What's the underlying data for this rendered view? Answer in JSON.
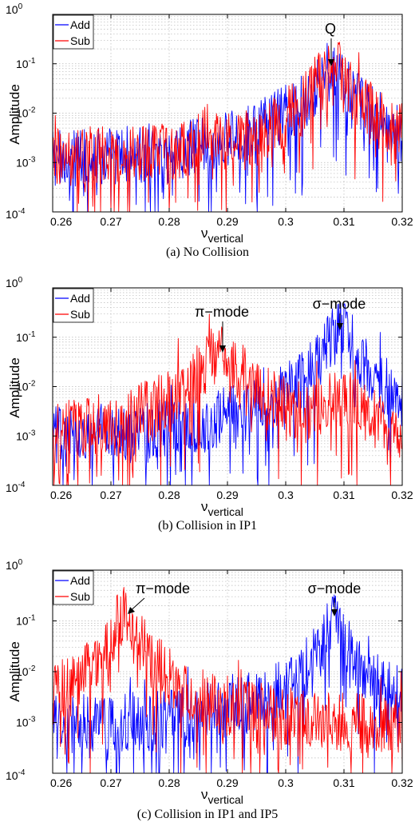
{
  "chart_data": [
    {
      "type": "line",
      "caption": "(a) No Collision",
      "xlabel": "ν",
      "xlabel_sub": "vertical",
      "ylabel": "Amplitude",
      "xlim": [
        0.26,
        0.32
      ],
      "ylim": [
        0.0001,
        1
      ],
      "yscale": "log",
      "grid": true,
      "x_ticks": [
        "0.26",
        "0.27",
        "0.28",
        "0.29",
        "0.3",
        "0.31",
        "0.32"
      ],
      "y_tick_exponents": [
        "-4",
        "-3",
        "-2",
        "-1",
        "0"
      ],
      "y_tick_base": "10",
      "legend": {
        "position": "top-left",
        "entries": [
          "Add",
          "Sub"
        ]
      },
      "annotations": [
        {
          "text": "Q",
          "x": 0.308,
          "y": 0.1
        }
      ],
      "series": [
        {
          "name": "Add",
          "color": "#0000ff",
          "profile": {
            "base": 0.0012,
            "peaks": [
              {
                "x": 0.308,
                "amp": 0.09,
                "width": 0.0022
              },
              {
                "x": 0.302,
                "amp": 0.006,
                "width": 0.004
              }
            ]
          }
        },
        {
          "name": "Sub",
          "color": "#ff0000",
          "profile": {
            "base": 0.0012,
            "peaks": [
              {
                "x": 0.308,
                "amp": 0.1,
                "width": 0.0024
              },
              {
                "x": 0.2865,
                "amp": 0.004,
                "width": 0.001
              }
            ]
          }
        }
      ]
    },
    {
      "type": "line",
      "caption": "(b) Collision in IP1",
      "xlabel": "ν",
      "xlabel_sub": "vertical",
      "ylabel": "Amplitude",
      "xlim": [
        0.26,
        0.32
      ],
      "ylim": [
        0.0001,
        1
      ],
      "yscale": "log",
      "grid": true,
      "x_ticks": [
        "0.26",
        "0.27",
        "0.28",
        "0.29",
        "0.3",
        "0.31",
        "0.32"
      ],
      "y_tick_exponents": [
        "-4",
        "-3",
        "-2",
        "-1",
        "0"
      ],
      "y_tick_base": "10",
      "legend": {
        "position": "top-left",
        "entries": [
          "Add",
          "Sub"
        ]
      },
      "annotations": [
        {
          "text": "π−mode",
          "x": 0.289,
          "y": 0.05
        },
        {
          "text": "σ−mode",
          "x": 0.3095,
          "y": 0.2
        }
      ],
      "series": [
        {
          "name": "Add",
          "color": "#0000ff",
          "profile": {
            "base": 0.0009,
            "peaks": [
              {
                "x": 0.3095,
                "amp": 0.18,
                "width": 0.0018
              },
              {
                "x": 0.3075,
                "amp": 0.008,
                "width": 0.004
              }
            ]
          }
        },
        {
          "name": "Sub",
          "color": "#ff0000",
          "profile": {
            "base": 0.0009,
            "peaks": [
              {
                "x": 0.289,
                "amp": 0.05,
                "width": 0.0025
              },
              {
                "x": 0.2875,
                "amp": 0.01,
                "width": 0.004
              },
              {
                "x": 0.3095,
                "amp": 0.008,
                "width": 0.002
              }
            ]
          }
        }
      ]
    },
    {
      "type": "line",
      "caption": "(c) Collision in IP1 and IP5",
      "xlabel": "ν",
      "xlabel_sub": "vertical",
      "ylabel": "Amplitude",
      "xlim": [
        0.26,
        0.32
      ],
      "ylim": [
        0.0001,
        1
      ],
      "yscale": "log",
      "grid": true,
      "x_ticks": [
        "0.26",
        "0.27",
        "0.28",
        "0.29",
        "0.3",
        "0.31",
        "0.32"
      ],
      "y_tick_exponents": [
        "-4",
        "-3",
        "-2",
        "-1",
        "0"
      ],
      "y_tick_base": "10",
      "legend": {
        "position": "top-left",
        "entries": [
          "Add",
          "Sub"
        ]
      },
      "annotations": [
        {
          "text": "π−mode",
          "x": 0.2725,
          "y": 0.16
        },
        {
          "text": "σ−mode",
          "x": 0.3085,
          "y": 0.15
        }
      ],
      "series": [
        {
          "name": "Add",
          "color": "#0000ff",
          "profile": {
            "base": 0.0008,
            "peaks": [
              {
                "x": 0.3085,
                "amp": 0.15,
                "width": 0.0012
              },
              {
                "x": 0.307,
                "amp": 0.006,
                "width": 0.006
              }
            ]
          }
        },
        {
          "name": "Sub",
          "color": "#ff0000",
          "profile": {
            "base": 0.0008,
            "peaks": [
              {
                "x": 0.2725,
                "amp": 0.16,
                "width": 0.0015
              },
              {
                "x": 0.272,
                "amp": 0.01,
                "width": 0.004
              }
            ]
          }
        }
      ]
    }
  ]
}
